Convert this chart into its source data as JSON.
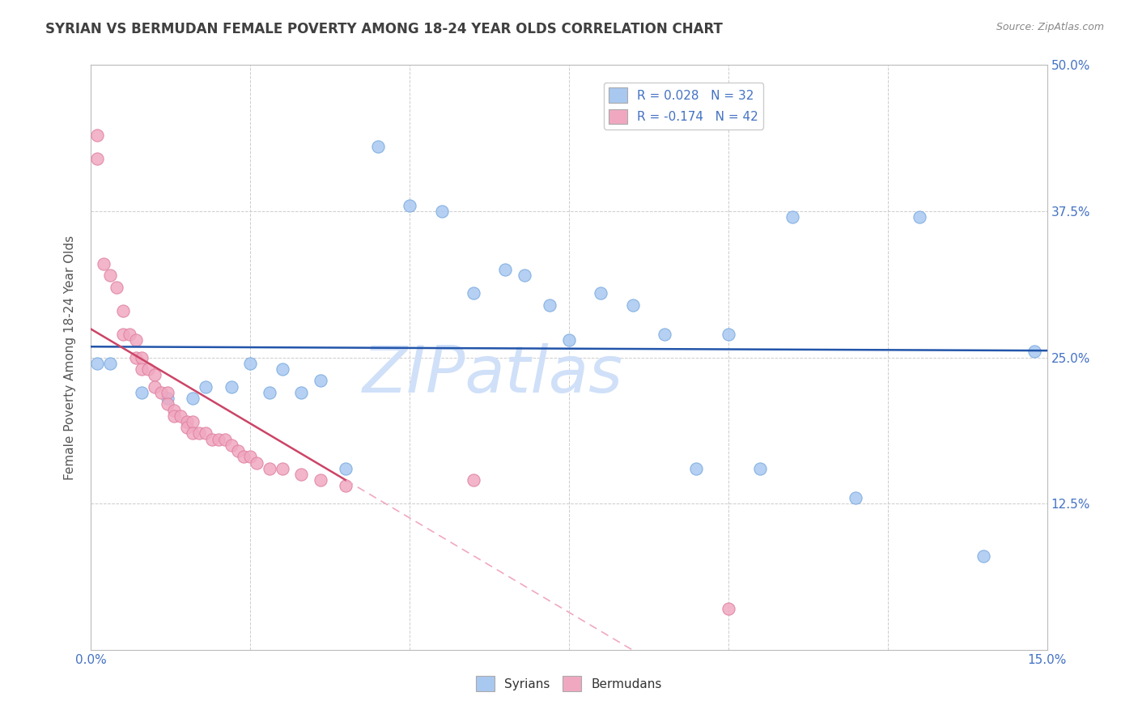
{
  "title": "SYRIAN VS BERMUDAN FEMALE POVERTY AMONG 18-24 YEAR OLDS CORRELATION CHART",
  "source": "Source: ZipAtlas.com",
  "ylabel": "Female Poverty Among 18-24 Year Olds",
  "xlim": [
    0.0,
    0.15
  ],
  "ylim": [
    0.0,
    0.5
  ],
  "xticks": [
    0.0,
    0.025,
    0.05,
    0.075,
    0.1,
    0.125,
    0.15
  ],
  "xticklabels": [
    "0.0%",
    "",
    "",
    "",
    "",
    "",
    "15.0%"
  ],
  "yticks": [
    0.0,
    0.125,
    0.25,
    0.375,
    0.5
  ],
  "yticklabels_right": [
    "",
    "12.5%",
    "25.0%",
    "37.5%",
    "50.0%"
  ],
  "legend_r_syrian": "R = 0.028",
  "legend_n_syrian": "N = 32",
  "legend_r_bermudan": "R = -0.174",
  "legend_n_bermudan": "N = 42",
  "syrian_color": "#a8c8f0",
  "bermudan_color": "#f0a8c0",
  "syrian_line_color": "#2255aa",
  "bermudan_line_color": "#cc4466",
  "bermudan_dash_color": "#f0a8c0",
  "grid_color": "#cccccc",
  "background_color": "#ffffff",
  "watermark": "ZIPatlas",
  "watermark_color": "#d0e0f8",
  "title_color": "#404040",
  "axis_color": "#4472c4",
  "syrians_x": [
    0.001,
    0.003,
    0.008,
    0.012,
    0.016,
    0.018,
    0.022,
    0.025,
    0.028,
    0.03,
    0.033,
    0.036,
    0.04,
    0.045,
    0.05,
    0.055,
    0.06,
    0.065,
    0.068,
    0.072,
    0.075,
    0.08,
    0.085,
    0.09,
    0.095,
    0.1,
    0.105,
    0.11,
    0.12,
    0.13,
    0.14,
    0.148
  ],
  "syrians_y": [
    0.245,
    0.245,
    0.22,
    0.215,
    0.215,
    0.225,
    0.225,
    0.245,
    0.22,
    0.24,
    0.22,
    0.23,
    0.155,
    0.43,
    0.38,
    0.375,
    0.305,
    0.325,
    0.32,
    0.295,
    0.265,
    0.305,
    0.295,
    0.27,
    0.155,
    0.27,
    0.155,
    0.37,
    0.13,
    0.37,
    0.08,
    0.255
  ],
  "bermudans_x": [
    0.001,
    0.001,
    0.002,
    0.003,
    0.004,
    0.005,
    0.005,
    0.006,
    0.007,
    0.007,
    0.008,
    0.008,
    0.009,
    0.01,
    0.01,
    0.011,
    0.012,
    0.012,
    0.013,
    0.013,
    0.014,
    0.015,
    0.015,
    0.016,
    0.016,
    0.017,
    0.018,
    0.019,
    0.02,
    0.021,
    0.022,
    0.023,
    0.024,
    0.025,
    0.026,
    0.028,
    0.03,
    0.033,
    0.036,
    0.04,
    0.06,
    0.1
  ],
  "bermudans_y": [
    0.44,
    0.42,
    0.33,
    0.32,
    0.31,
    0.29,
    0.27,
    0.27,
    0.265,
    0.25,
    0.25,
    0.24,
    0.24,
    0.235,
    0.225,
    0.22,
    0.22,
    0.21,
    0.205,
    0.2,
    0.2,
    0.195,
    0.19,
    0.195,
    0.185,
    0.185,
    0.185,
    0.18,
    0.18,
    0.18,
    0.175,
    0.17,
    0.165,
    0.165,
    0.16,
    0.155,
    0.155,
    0.15,
    0.145,
    0.14,
    0.145,
    0.035
  ],
  "bermudan_trend_solid_xlim": [
    0.0,
    0.04
  ],
  "bermudan_trend_dash_xlim": [
    0.04,
    0.15
  ]
}
